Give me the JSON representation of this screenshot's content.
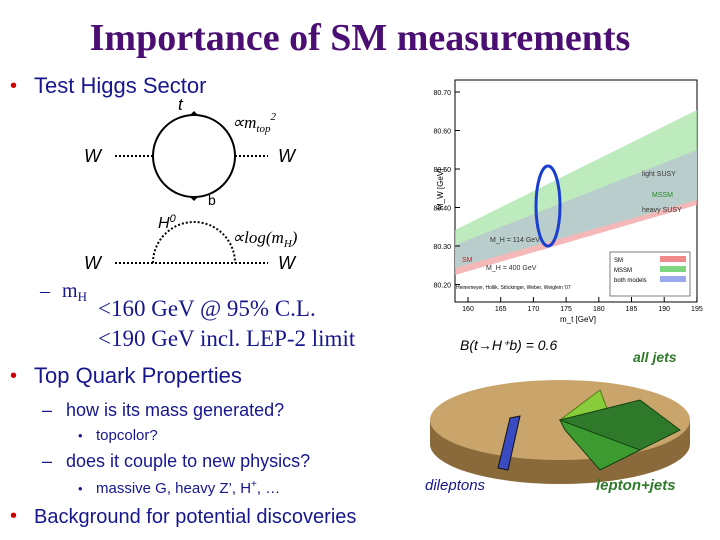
{
  "title": "Importance of SM measurements",
  "bullets": {
    "higgs": "Test Higgs Sector",
    "mh_m": "m",
    "mh_sub": "H",
    "limit1": "<160 GeV @ 95% C.L.",
    "limit2": "<190 GeV incl. LEP-2 limit",
    "top": "Top Quark Properties",
    "mass": "how is its mass generated?",
    "topcolor": "topcolor?",
    "couple": "does it couple to new physics?",
    "massive_a": "massive G, heavy Z’, H",
    "massive_sup": "+",
    "massive_b": ", …",
    "background": "Background for potential discoveries"
  },
  "diagram": {
    "t": "t",
    "b": "b",
    "w": "W",
    "prop_top_a": "∝m",
    "prop_top_sub": "top",
    "prop_top_sup": "2",
    "h": "H",
    "h_sup": "0",
    "prop_h_a": "∝log(m",
    "prop_h_sub": "H",
    "prop_h_b": ")"
  },
  "plot": {
    "ylabel": "M_W [GeV]",
    "xlabel": "m_t [GeV]",
    "yticks": [
      "80.70",
      "80.60",
      "80.50",
      "80.40",
      "80.30",
      "80.20"
    ],
    "xticks": [
      "160",
      "165",
      "170",
      "175",
      "180",
      "185",
      "190",
      "195"
    ],
    "labels": [
      "light SUSY",
      "MSSM",
      "heavy SUSY",
      "M_H = 114 GeV",
      "SM",
      "M_H = 400 GeV"
    ],
    "legend": [
      "SM",
      "MSSM",
      "both models"
    ],
    "credit": "Heinemeyer, Hollik, Stöckinger, Weber, Weiglein '07"
  },
  "pie": {
    "title": "B(t→H⁺b) = 0.6",
    "all_jets": "all jets",
    "dileptons": "dileptons",
    "lepton_jets": "lepton+jets"
  }
}
